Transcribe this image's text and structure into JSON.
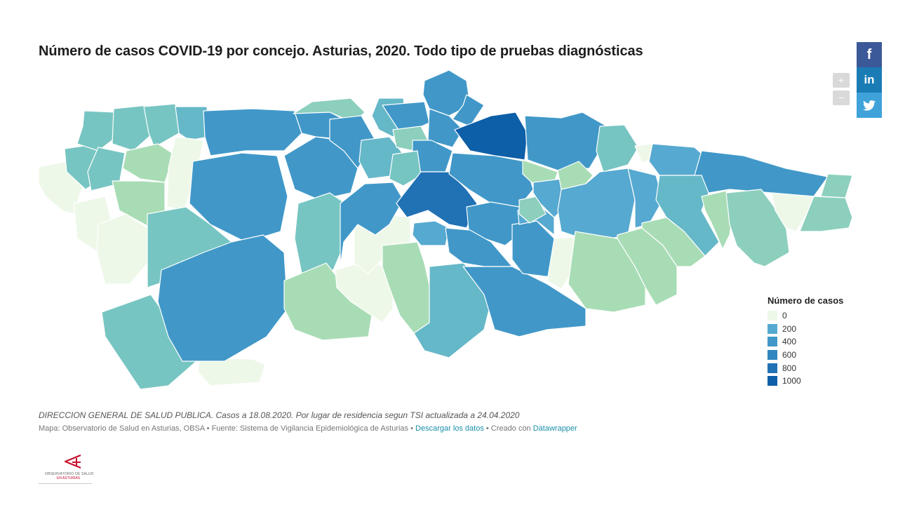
{
  "title": "Número de casos COVID-19 por concejo. Asturias, 2020. Todo tipo de pruebas diagnósticas",
  "zoom": {
    "in_label": "+",
    "out_label": "−"
  },
  "share": {
    "facebook": "f",
    "linkedin": "in",
    "twitter": "twitter-icon"
  },
  "legend": {
    "title": "Número de casos",
    "items": [
      {
        "label": "0",
        "color": "#edf8e9"
      },
      {
        "label": "200",
        "color": "#56a9d0"
      },
      {
        "label": "400",
        "color": "#4198c8"
      },
      {
        "label": "600",
        "color": "#3086be"
      },
      {
        "label": "800",
        "color": "#2171b5"
      },
      {
        "label": "1000",
        "color": "#0d5fa8"
      }
    ]
  },
  "colors": {
    "c0": "#edf8e9",
    "c1": "#a8dcb5",
    "c2": "#8ccfbd",
    "c3": "#77c5c2",
    "c4": "#65b8c8",
    "c5": "#56a9d0",
    "c6": "#4198c8",
    "c7": "#3086be",
    "c8": "#2171b5",
    "c9": "#0d5fa8"
  },
  "source_note": "DIRECCION GENERAL DE SALUD PUBLICA. Casos a 18.08.2020. Por lugar de residencia segun TSI actualizada a 24.04.2020",
  "footer": {
    "map_text": "Mapa: Observatorio de Salud en Asturias, OBSA • Fuente: Sistema de Vigilancia Epidemiológica de Asturias • ",
    "download_link": "Descargar los datos",
    "middle_text": " • Creado con ",
    "creator_link": "Datawrapper"
  },
  "logo": {
    "line1": "OBSERVATORIO DE SALUD",
    "line2": "EN ASTURIAS"
  }
}
